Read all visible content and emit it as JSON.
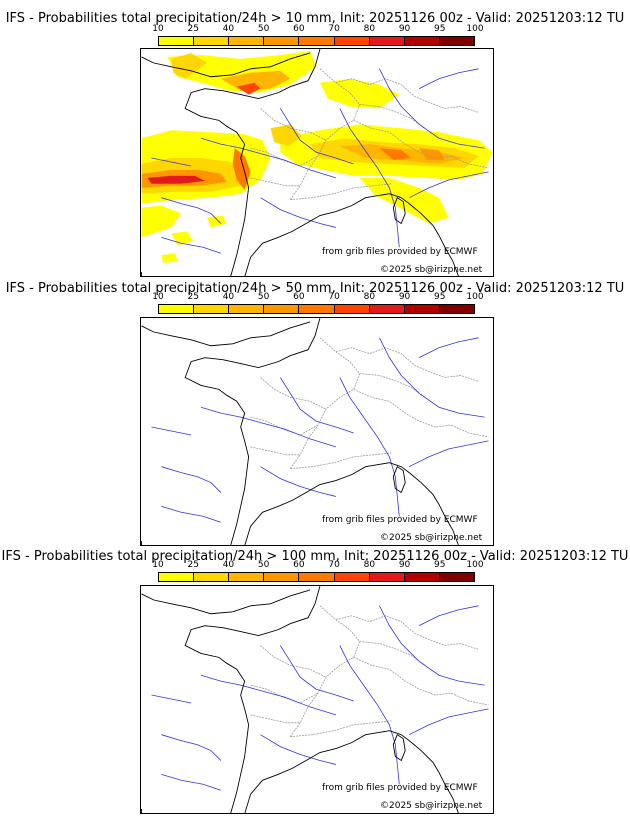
{
  "panels": [
    {
      "title": "IFS - Probabilities total precipitation/24h > 10 mm, Init: 20251126 00z - Valid: 20251203:12 TU",
      "threshold": "10 mm",
      "has_precip": true
    },
    {
      "title": "IFS - Probabilities total precipitation/24h > 50 mm, Init: 20251126 00z - Valid: 20251203:12 TU",
      "threshold": "50 mm",
      "has_precip": false
    },
    {
      "title": "IFS - Probabilities total precipitation/24h > 100 mm, Init: 20251126 00z - Valid: 20251203:12 TU",
      "threshold": "100 mm",
      "has_precip": false
    }
  ],
  "colorbar": {
    "ticks": [
      "10",
      "25",
      "40",
      "50",
      "60",
      "70",
      "80",
      "90",
      "95",
      "100"
    ],
    "colors": [
      "#ffff00",
      "#ffd700",
      "#ffb400",
      "#ff9600",
      "#ff7800",
      "#ff4500",
      "#e31a1c",
      "#b00000",
      "#800000"
    ]
  },
  "credits": {
    "source": "from grib files provided by ECMWF",
    "copyright": "©2025 sb@irizpne.net"
  },
  "colors": {
    "coast": "#000000",
    "border": "#999999",
    "river": "#3333dd"
  }
}
